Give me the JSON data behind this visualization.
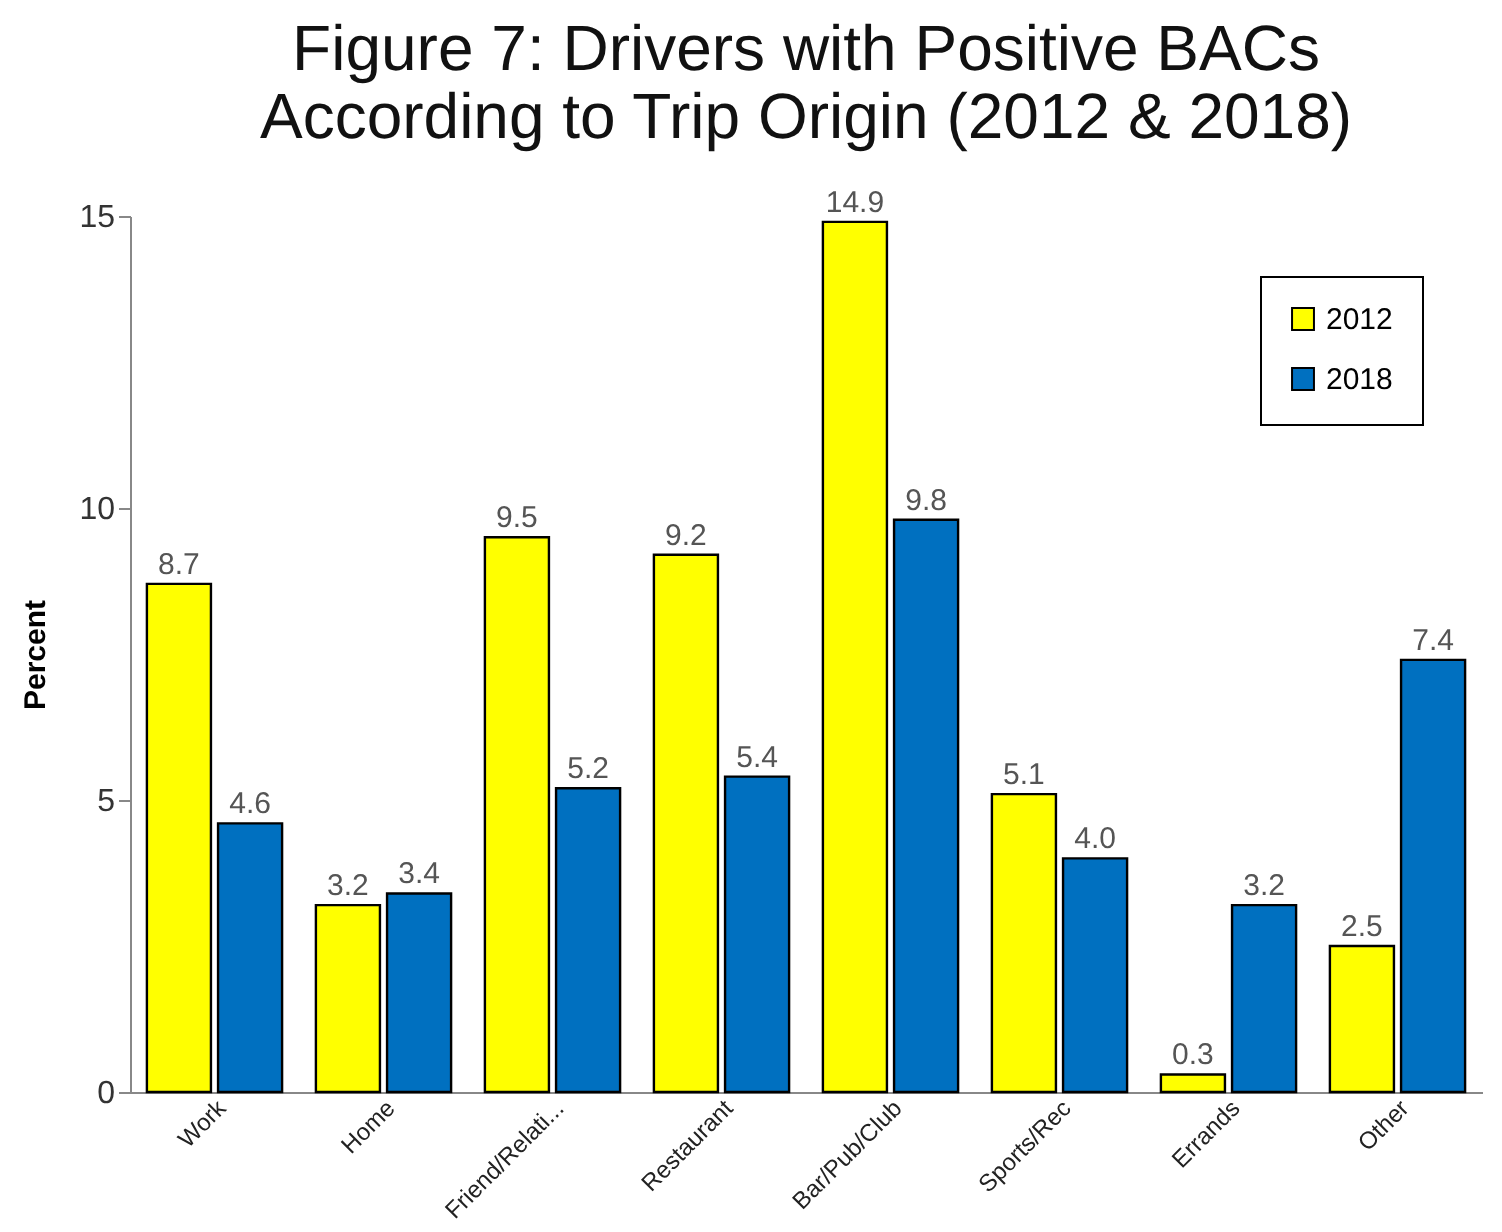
{
  "chart_data": {
    "type": "bar",
    "title": "Figure 7: Drivers with Positive BACs\nAccording to Trip Origin (2012 & 2018)",
    "ylabel": "Percent",
    "categories": [
      "Work",
      "Home",
      "Friend/Relati...",
      "Restaurant",
      "Bar/Pub/Club",
      "Sports/Rec",
      "Errands",
      "Other"
    ],
    "series": [
      {
        "name": "2012",
        "color": "#ffff00",
        "values": [
          8.7,
          3.2,
          9.5,
          9.2,
          14.9,
          5.1,
          0.3,
          2.5
        ],
        "value_labels": [
          "8.7",
          "3.2",
          "9.5",
          "9.2",
          "14.9",
          "5.1",
          "0.3",
          "2.5"
        ]
      },
      {
        "name": "2018",
        "color": "#0070c0",
        "values": [
          4.6,
          3.4,
          5.2,
          5.4,
          9.8,
          4.0,
          3.2,
          7.4
        ],
        "value_labels": [
          "4.6",
          "3.4",
          "5.2",
          "5.4",
          "9.8",
          "4.0",
          "3.2",
          "7.4"
        ]
      }
    ],
    "ylim": [
      0,
      15
    ],
    "yticks": [
      0,
      5,
      10,
      15
    ],
    "grid": false,
    "legend": "top right"
  }
}
